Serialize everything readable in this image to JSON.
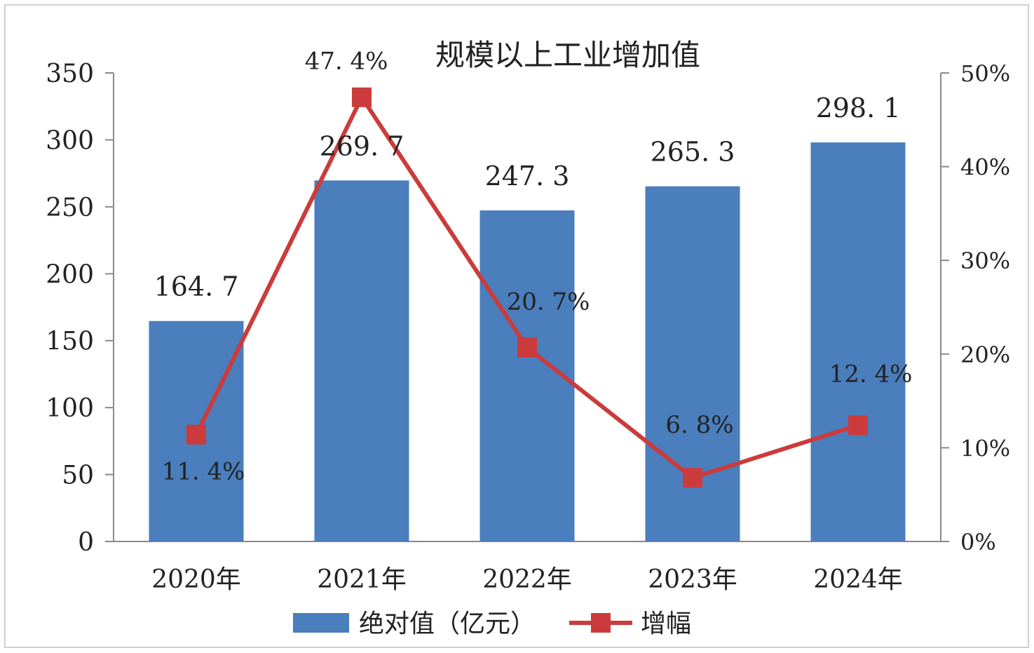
{
  "chart_data": {
    "type": "bar",
    "title": "规模以上工业增加值",
    "categories": [
      "2020年",
      "2021年",
      "2022年",
      "2023年",
      "2024年"
    ],
    "series": [
      {
        "name": "绝对值（亿元）",
        "type": "bar",
        "axis": "left",
        "values": [
          164.7,
          269.7,
          247.3,
          265.3,
          298.1
        ],
        "labels": [
          "164. 7",
          "269. 7",
          "247. 3",
          "265. 3",
          "298. 1"
        ],
        "color": "#4a7ebd"
      },
      {
        "name": "增幅",
        "type": "line",
        "axis": "right",
        "values": [
          11.4,
          47.4,
          20.7,
          6.8,
          12.4
        ],
        "labels": [
          "11. 4%",
          "47. 4%",
          "20. 7%",
          "6. 8%",
          "12. 4%"
        ],
        "color": "#cc3b3b"
      }
    ],
    "y_left": {
      "ylim": [
        0,
        350
      ],
      "ticks": [
        "0",
        "50",
        "100",
        "150",
        "200",
        "250",
        "300",
        "350"
      ]
    },
    "y_right": {
      "ylim": [
        0,
        50
      ],
      "ticks": [
        "0%",
        "10%",
        "20%",
        "30%",
        "40%",
        "50%"
      ]
    },
    "legend_position": "bottom",
    "grid": false
  }
}
